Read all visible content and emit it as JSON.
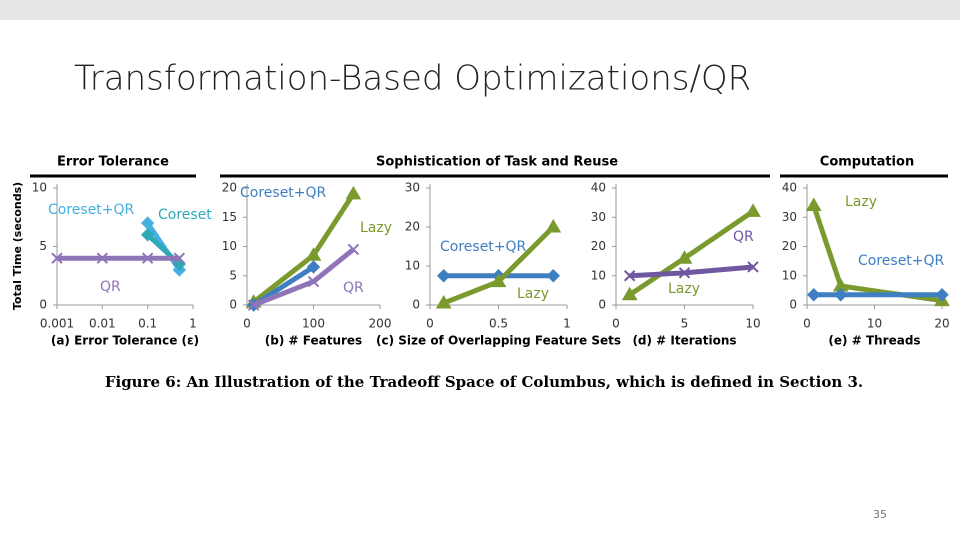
{
  "slide_title": "Transformation-Based Optimizations/QR",
  "group_headers": [
    "Error Tolerance",
    "Sophistication of Task and Reuse",
    "Computation"
  ],
  "ylabel": "Total Time (seconds)",
  "caption": "Figure 6: An Illustration of the Tradeoff Space of Columbus, which is defined in Section 3.",
  "page_number": "35",
  "chart_data": [
    {
      "type": "line",
      "xlabel": "(a) Error Tolerance (ε)",
      "xscale": "log",
      "xlim": [
        0.001,
        1
      ],
      "xticks": [
        0.001,
        0.01,
        0.1,
        1
      ],
      "ylim": [
        0,
        10
      ],
      "yticks": [
        0,
        5,
        10
      ],
      "series": [
        {
          "name": "Coreset+QR",
          "color": "#45b0e0",
          "marker": "diamond",
          "x": [
            0.1,
            0.5
          ],
          "values": [
            7,
            3
          ]
        },
        {
          "name": "Coreset",
          "color": "#2fa9b8",
          "marker": "diamond",
          "x": [
            0.1,
            0.5
          ],
          "values": [
            6,
            3.5
          ]
        },
        {
          "name": "QR",
          "color": "#8f74b8",
          "marker": "cross",
          "x": [
            0.001,
            0.01,
            0.1,
            0.5
          ],
          "values": [
            4,
            4,
            4,
            4
          ]
        }
      ]
    },
    {
      "type": "line",
      "xlabel": "(b) # Features",
      "xlim": [
        0,
        200
      ],
      "xticks": [
        0,
        100,
        200
      ],
      "ylim": [
        0,
        20
      ],
      "yticks": [
        0,
        5,
        10,
        15,
        20
      ],
      "series": [
        {
          "name": "Lazy",
          "color": "#7a9a2e",
          "marker": "triangle",
          "x": [
            10,
            100,
            160
          ],
          "values": [
            0.5,
            8.5,
            19
          ]
        },
        {
          "name": "Coreset+QR",
          "color": "#3f7fc1",
          "marker": "diamond",
          "x": [
            10,
            100
          ],
          "values": [
            0,
            6.5
          ]
        },
        {
          "name": "QR",
          "color": "#8f74b8",
          "marker": "cross",
          "x": [
            10,
            100,
            160
          ],
          "values": [
            0,
            4,
            9.5
          ]
        }
      ]
    },
    {
      "type": "line",
      "xlabel": "(c) Size of Overlapping Feature Sets",
      "xlim": [
        0,
        1
      ],
      "xticks": [
        0,
        0.5,
        1
      ],
      "ylim": [
        0,
        30
      ],
      "yticks": [
        0,
        10,
        20,
        30
      ],
      "series": [
        {
          "name": "Coreset+QR",
          "color": "#3f7fc1",
          "marker": "diamond",
          "x": [
            0.1,
            0.5,
            0.9
          ],
          "values": [
            7.5,
            7.5,
            7.5
          ]
        },
        {
          "name": "Lazy",
          "color": "#7a9a2e",
          "marker": "triangle",
          "x": [
            0.1,
            0.5,
            0.9
          ],
          "values": [
            0.5,
            6,
            20
          ]
        }
      ]
    },
    {
      "type": "line",
      "xlabel": "(d) # Iterations",
      "xlim": [
        0,
        10
      ],
      "xticks": [
        0,
        5,
        10
      ],
      "ylim": [
        0,
        40
      ],
      "yticks": [
        0,
        10,
        20,
        30,
        40
      ],
      "series": [
        {
          "name": "Lazy",
          "color": "#7a9a2e",
          "marker": "triangle",
          "x": [
            1,
            5,
            10
          ],
          "values": [
            3.5,
            16,
            32
          ]
        },
        {
          "name": "QR",
          "color": "#6f58a0",
          "marker": "cross",
          "x": [
            1,
            5,
            10
          ],
          "values": [
            10,
            11,
            13
          ]
        }
      ]
    },
    {
      "type": "line",
      "xlabel": "(e) # Threads",
      "xlim": [
        0,
        20
      ],
      "xticks": [
        0,
        10,
        20
      ],
      "ylim": [
        0,
        40
      ],
      "yticks": [
        0,
        10,
        20,
        30,
        40
      ],
      "series": [
        {
          "name": "Lazy",
          "color": "#7a9a2e",
          "marker": "triangle",
          "x": [
            1,
            5,
            20
          ],
          "values": [
            34,
            6.5,
            1.5
          ]
        },
        {
          "name": "Coreset+QR",
          "color": "#3f7fc1",
          "marker": "diamond",
          "x": [
            1,
            5,
            20
          ],
          "values": [
            3.5,
            3.5,
            3.5
          ]
        }
      ]
    }
  ]
}
